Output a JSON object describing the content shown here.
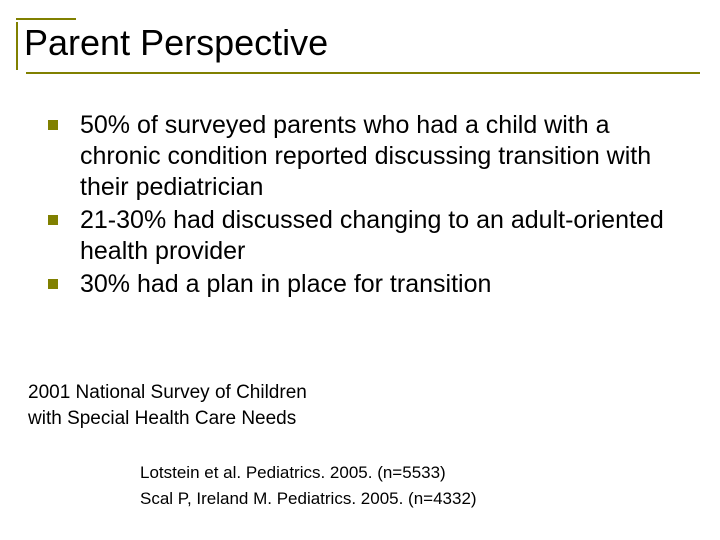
{
  "title": "Parent Perspective",
  "bullets": [
    "50% of surveyed parents who had a child with a chronic condition reported discussing transition with their pediatrician",
    "21-30% had discussed changing to an adult-oriented health provider",
    "30% had a plan in place for transition"
  ],
  "source": {
    "line1": "2001 National Survey of Children",
    "line2": "with Special Health Care Needs"
  },
  "citations": [
    "Lotstein et al. Pediatrics. 2005. (n=5533)",
    "Scal P, Ireland M. Pediatrics. 2005. (n=4332)"
  ],
  "colors": {
    "accent": "#808000",
    "text": "#000000",
    "background": "#ffffff"
  },
  "fonts": {
    "title_size": 36,
    "bullet_size": 25,
    "source_size": 19,
    "citation_size": 17
  }
}
